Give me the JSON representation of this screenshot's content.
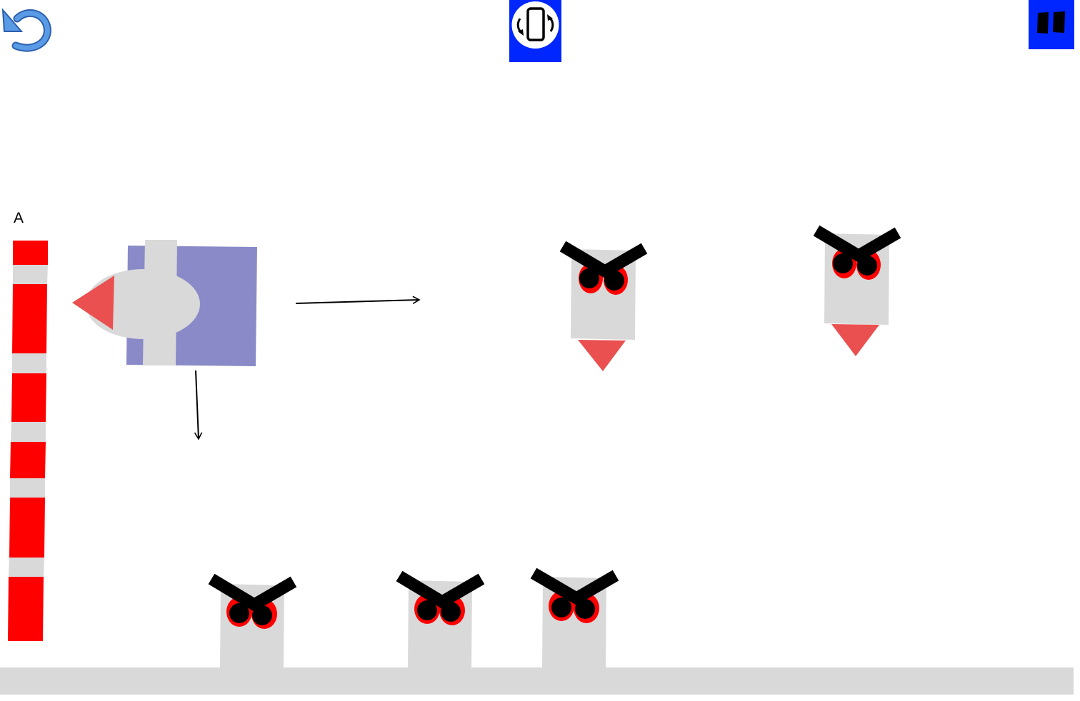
{
  "hud": {
    "undo_icon": "undo-arrow-icon",
    "rotate_icon": "rotate-device-icon",
    "pause_icon": "pause-icon",
    "button_color": "#0026ff",
    "undo_color": "#4a8fe0"
  },
  "power_meter": {
    "label": "A",
    "filled_color": "#ff0000",
    "empty_color": "#d9d9d9"
  },
  "player": {
    "name": "rocket-ship",
    "body_color": "#8a8ac8",
    "hull_color": "#d9d9d9",
    "nose_color": "#ea5050"
  },
  "enemies": {
    "count": 5,
    "body_color": "#d9d9d9",
    "brow_color": "#000000",
    "eye_color": "#ff0000",
    "flame_color": "#ea5050"
  },
  "ground": {
    "color": "#d9d9d9"
  }
}
